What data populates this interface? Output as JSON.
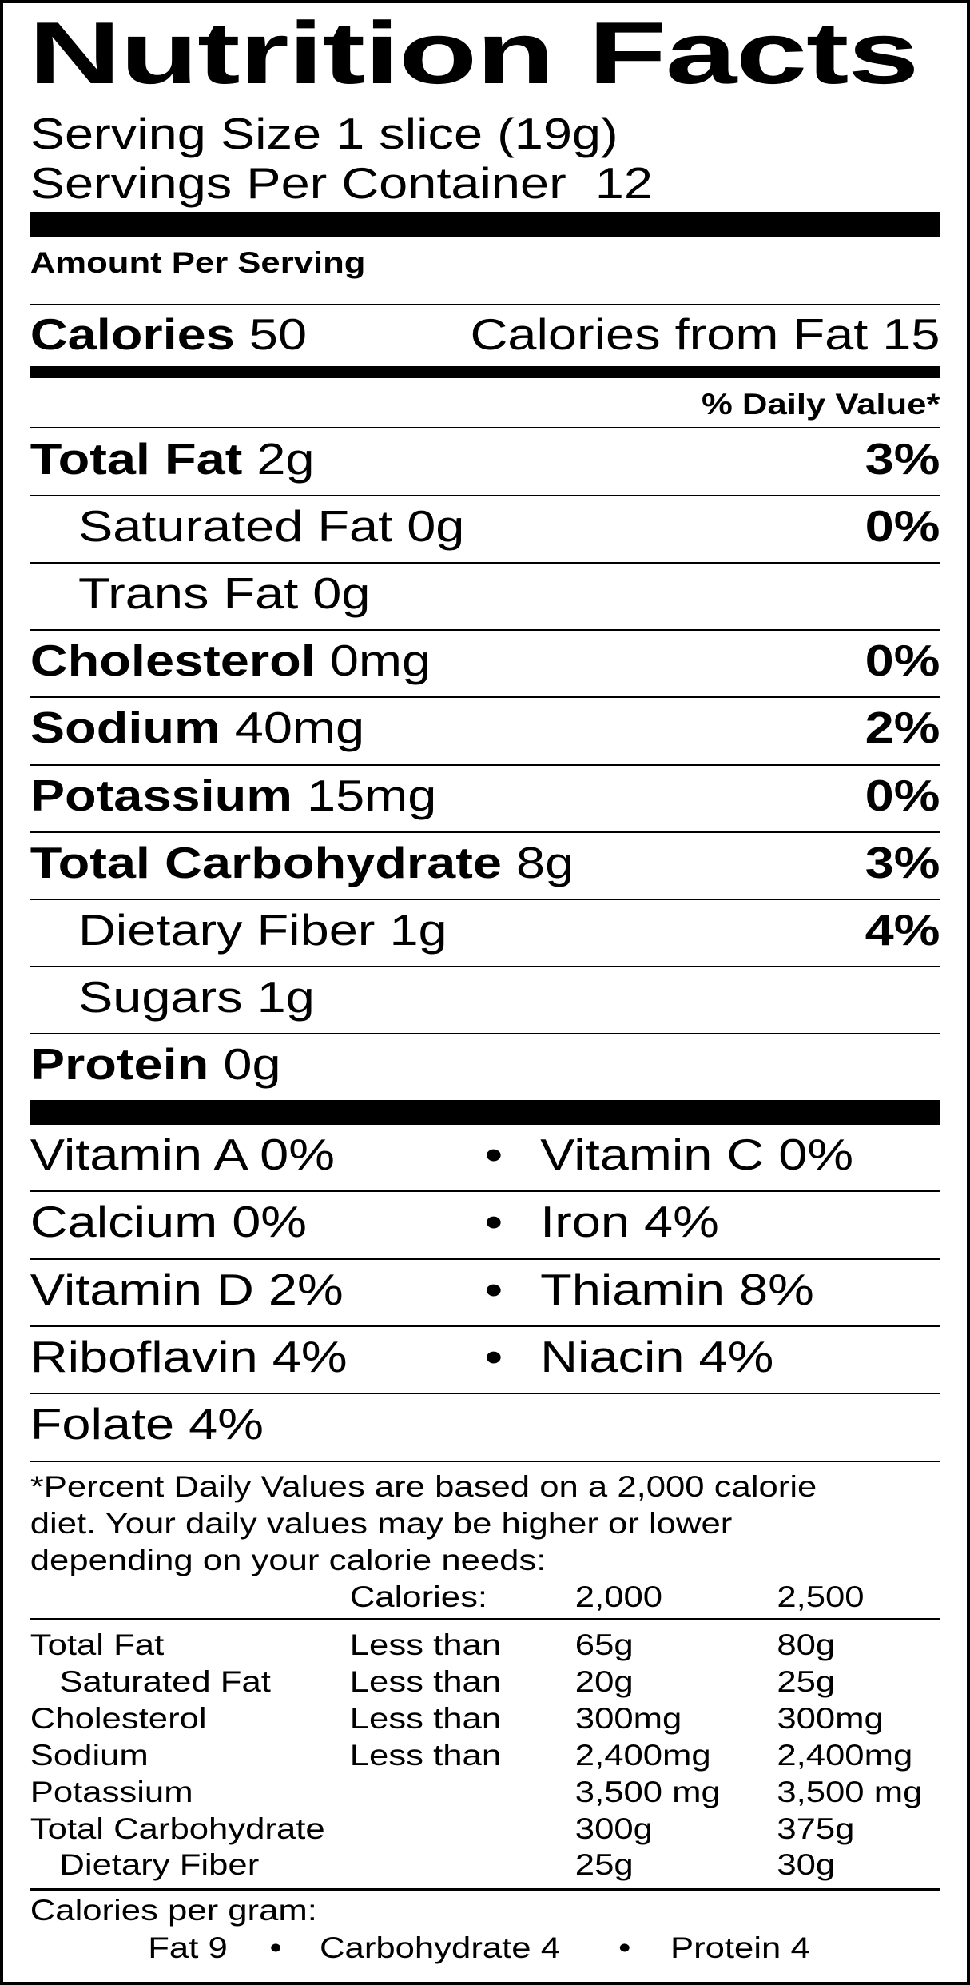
{
  "title": "Nutrition Facts",
  "serving_size": "Serving Size 1 slice (19g)",
  "servings_per_container": "Servings Per Container  12",
  "amount_per_serving": "Amount Per Serving",
  "calories": {
    "label": "Calories",
    "value": "50",
    "from_fat": "Calories from Fat 15"
  },
  "daily_value_header": "% Daily Value*",
  "nutrients": [
    {
      "name": "Total Fat",
      "amount": "2g",
      "dv": "3%",
      "bold": true,
      "indent": false
    },
    {
      "name": "Saturated Fat",
      "amount": "0g",
      "dv": "0%",
      "bold": false,
      "indent": true
    },
    {
      "name": "Trans Fat",
      "amount": "0g",
      "dv": "",
      "bold": false,
      "indent": true
    },
    {
      "name": "Cholesterol",
      "amount": "0mg",
      "dv": "0%",
      "bold": true,
      "indent": false
    },
    {
      "name": "Sodium",
      "amount": "40mg",
      "dv": "2%",
      "bold": true,
      "indent": false
    },
    {
      "name": "Potassium",
      "amount": "15mg",
      "dv": "0%",
      "bold": true,
      "indent": false
    },
    {
      "name": "Total Carbohydrate",
      "amount": "8g",
      "dv": "3%",
      "bold": true,
      "indent": false
    },
    {
      "name": "Dietary Fiber",
      "amount": "1g",
      "dv": "4%",
      "bold": false,
      "indent": true
    },
    {
      "name": "Sugars",
      "amount": "1g",
      "dv": "",
      "bold": false,
      "indent": true
    },
    {
      "name": "Protein",
      "amount": "0g",
      "dv": "",
      "bold": true,
      "indent": false
    }
  ],
  "vitamins": [
    {
      "left": "Vitamin A 0%",
      "right": "Vitamin C 0%"
    },
    {
      "left": "Calcium 0%",
      "right": "Iron 4%"
    },
    {
      "left": "Vitamin D 2%",
      "right": "Thiamin 8%"
    },
    {
      "left": "Riboflavin 4%",
      "right": "Niacin 4%"
    },
    {
      "left": "Folate 4%",
      "right": ""
    }
  ],
  "bullet": "•",
  "footnote_lines": [
    "*Percent Daily Values are based on a 2,000 calorie",
    "diet. Your daily values may be higher or lower",
    "depending on your calorie needs:"
  ],
  "dv_table": {
    "header": [
      "",
      "Calories:",
      "2,000",
      "2,500"
    ],
    "rows": [
      {
        "name": "Total Fat",
        "indent": false,
        "qualifier": "Less than",
        "v2000": "65g",
        "v2500": "80g"
      },
      {
        "name": "Saturated Fat",
        "indent": true,
        "qualifier": "Less than",
        "v2000": "20g",
        "v2500": "25g"
      },
      {
        "name": "Cholesterol",
        "indent": false,
        "qualifier": "Less than",
        "v2000": "300mg",
        "v2500": "300mg"
      },
      {
        "name": "Sodium",
        "indent": false,
        "qualifier": "Less than",
        "v2000": "2,400mg",
        "v2500": "2,400mg"
      },
      {
        "name": "Potassium",
        "indent": false,
        "qualifier": "",
        "v2000": "3,500 mg",
        "v2500": "3,500 mg"
      },
      {
        "name": "Total Carbohydrate",
        "indent": false,
        "qualifier": "",
        "v2000": "300g",
        "v2500": "375g"
      },
      {
        "name": "Dietary Fiber",
        "indent": true,
        "qualifier": "",
        "v2000": "25g",
        "v2500": "30g"
      }
    ]
  },
  "calories_per_gram": {
    "label": "Calories per gram:",
    "fat": "Fat 9",
    "carbohydrate": "Carbohydrate 4",
    "protein": "Protein 4"
  }
}
